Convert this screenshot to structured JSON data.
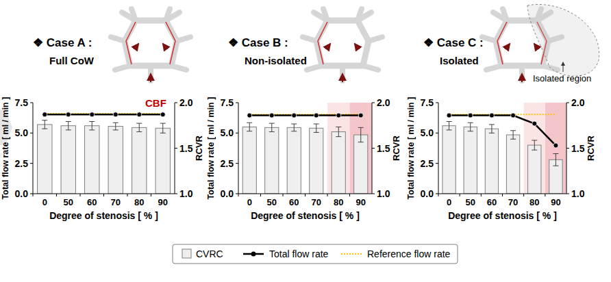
{
  "chart_data": [
    {
      "type": "bar",
      "title": "❖ Case A :",
      "subtitle": "Full CoW",
      "annotations": [
        "CBF"
      ],
      "categories": [
        "0",
        "50",
        "60",
        "70",
        "80",
        "90"
      ],
      "x_label": "Degree of stenosis [ % ]",
      "y_label": "Total flow rate [ ml / min ]",
      "y2_label": "RCVR",
      "ylim": [
        0,
        7.5
      ],
      "yticks": [
        {
          "value": 0,
          "label": "0.0"
        },
        {
          "value": 2.5,
          "label": "2.5"
        },
        {
          "value": 5,
          "label": "5.0"
        },
        {
          "value": 7.5,
          "label": "7.5"
        }
      ],
      "y2lim": [
        1,
        2
      ],
      "y2ticks": [
        {
          "value": 1,
          "label": "1.0"
        },
        {
          "value": 1.5,
          "label": "1.5"
        },
        {
          "value": 2,
          "label": "2.0"
        }
      ],
      "series": [
        {
          "name": "CVRC",
          "type": "bar",
          "color": "#efefef",
          "values": [
            5.7,
            5.6,
            5.6,
            5.55,
            5.45,
            5.4
          ],
          "errors": [
            0.35,
            0.35,
            0.35,
            0.3,
            0.35,
            0.4
          ]
        },
        {
          "name": "Total flow rate",
          "type": "line",
          "color": "#000000",
          "marker": "circle",
          "axis": "y2",
          "values": [
            1.87,
            1.87,
            1.87,
            1.87,
            1.87,
            1.87
          ]
        },
        {
          "name": "Reference flow rate",
          "type": "line",
          "color": "#ffc000",
          "line_style": "dotted",
          "axis": "y2",
          "values": [
            1.88,
            1.88,
            1.88,
            1.88,
            1.88,
            1.88
          ]
        }
      ],
      "highlights": []
    },
    {
      "type": "bar",
      "title": "❖ Case B :",
      "subtitle": "Non-isolated",
      "annotations": [],
      "categories": [
        "0",
        "50",
        "60",
        "70",
        "80",
        "90"
      ],
      "x_label": "Degree of stenosis [ % ]",
      "y_label": "Total flow rate [ ml / min ]",
      "y2_label": "RCVR",
      "ylim": [
        0,
        7.5
      ],
      "yticks": [
        {
          "value": 0,
          "label": "0.0"
        },
        {
          "value": 2.5,
          "label": "2.5"
        },
        {
          "value": 5,
          "label": "5.0"
        },
        {
          "value": 7.5,
          "label": "7.5"
        }
      ],
      "y2lim": [
        1,
        2
      ],
      "y2ticks": [
        {
          "value": 1,
          "label": "1.0"
        },
        {
          "value": 1.5,
          "label": "1.5"
        },
        {
          "value": 2,
          "label": "2.0"
        }
      ],
      "series": [
        {
          "name": "CVRC",
          "type": "bar",
          "color": "#efefef",
          "values": [
            5.5,
            5.45,
            5.45,
            5.4,
            5.1,
            4.85
          ],
          "errors": [
            0.35,
            0.35,
            0.3,
            0.35,
            0.4,
            0.6
          ]
        },
        {
          "name": "Total flow rate",
          "type": "line",
          "color": "#000000",
          "marker": "circle",
          "axis": "y2",
          "values": [
            1.86,
            1.86,
            1.86,
            1.86,
            1.86,
            1.86
          ]
        },
        {
          "name": "Reference flow rate",
          "type": "line",
          "color": "#ffc000",
          "line_style": "dotted",
          "axis": "y2",
          "values": [
            1.87,
            1.87,
            1.87,
            1.87,
            1.87,
            1.87
          ]
        }
      ],
      "highlights": [
        {
          "category": "80",
          "color": "#fbe4e4"
        },
        {
          "category": "90",
          "color": "#f4c6ca"
        }
      ]
    },
    {
      "type": "bar",
      "title": "❖ Case C :",
      "subtitle": "Isolated",
      "annotations": [
        "Isolated region"
      ],
      "categories": [
        "0",
        "50",
        "60",
        "70",
        "80",
        "90"
      ],
      "x_label": "Degree of stenosis [ % ]",
      "y_label": "Total flow rate [ ml / min ]",
      "y2_label": "RCVR",
      "ylim": [
        0,
        7.5
      ],
      "yticks": [
        {
          "value": 0,
          "label": "0.0"
        },
        {
          "value": 2.5,
          "label": "2.5"
        },
        {
          "value": 5,
          "label": "5.0"
        },
        {
          "value": 7.5,
          "label": "7.5"
        }
      ],
      "y2lim": [
        1,
        2
      ],
      "y2ticks": [
        {
          "value": 1,
          "label": "1.0"
        },
        {
          "value": 1.5,
          "label": "1.5"
        },
        {
          "value": 2,
          "label": "2.0"
        }
      ],
      "series": [
        {
          "name": "CVRC",
          "type": "bar",
          "color": "#efefef",
          "values": [
            5.6,
            5.5,
            5.35,
            4.85,
            4.0,
            2.8
          ],
          "errors": [
            0.35,
            0.35,
            0.35,
            0.35,
            0.4,
            0.5
          ]
        },
        {
          "name": "Total flow rate",
          "type": "line",
          "color": "#000000",
          "marker": "circle",
          "axis": "y2",
          "values": [
            1.86,
            1.86,
            1.86,
            1.86,
            1.77,
            1.53
          ]
        },
        {
          "name": "Reference flow rate",
          "type": "line",
          "color": "#ffc000",
          "line_style": "dotted",
          "axis": "y2",
          "values": [
            1.87,
            1.87,
            1.87,
            1.87,
            1.87,
            1.87
          ]
        }
      ],
      "highlights": [
        {
          "category": "80",
          "color": "#fbe4e4"
        },
        {
          "category": "90",
          "color": "#f4c6ca"
        }
      ]
    }
  ]
}
